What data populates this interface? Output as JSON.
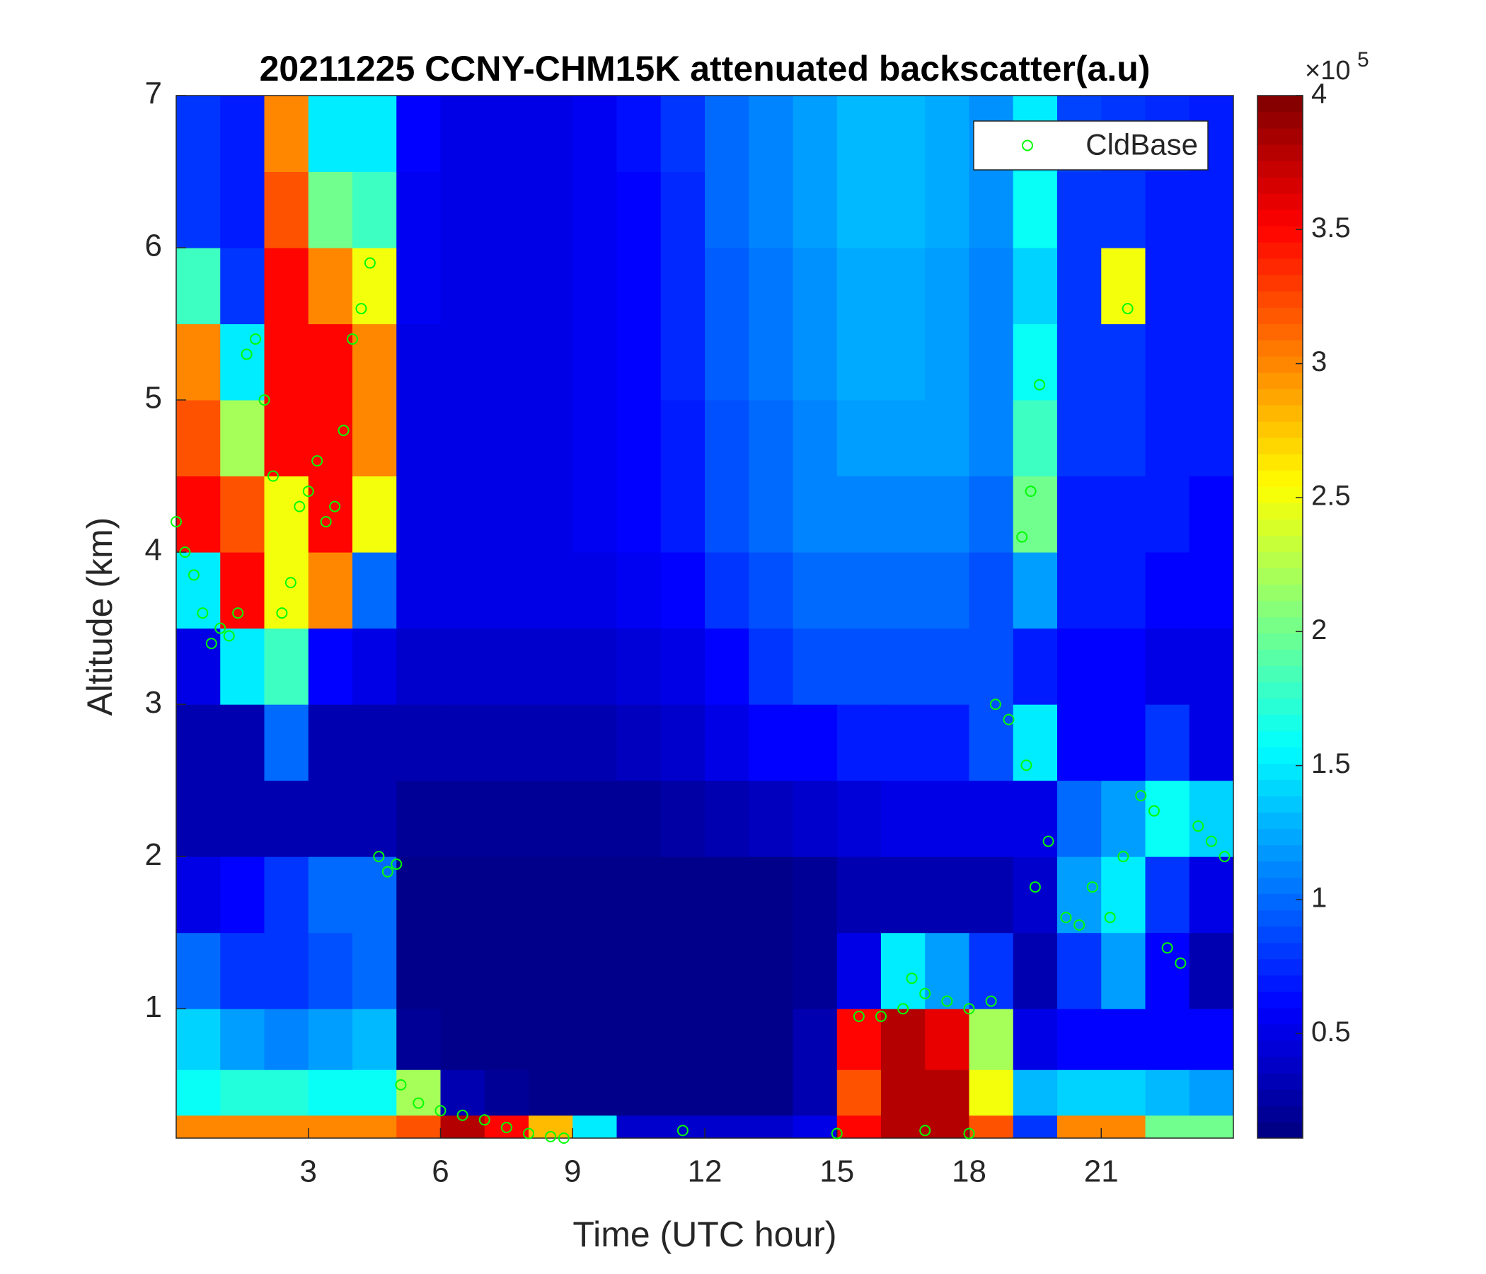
{
  "chart_data": {
    "type": "heatmap",
    "title": "20211225 CCNY-CHM15K attenuated backscatter(a.u)",
    "xlabel": "Time (UTC hour)",
    "ylabel": "Altitude (km)",
    "xlim": [
      0,
      24
    ],
    "ylim": [
      0.15,
      7
    ],
    "xticks": [
      3,
      6,
      9,
      12,
      15,
      18,
      21
    ],
    "yticks": [
      1,
      2,
      3,
      4,
      5,
      6,
      7
    ],
    "colormap": "jet",
    "clim": [
      0.11,
      4
    ],
    "cticks": [
      0.5,
      1,
      1.5,
      2,
      2.5,
      3,
      3.5,
      4
    ],
    "colorbar_multiplier": "×10",
    "colorbar_exponent": "5",
    "x_edges": [
      0,
      1,
      2,
      3,
      4,
      5,
      6,
      7,
      8,
      9,
      10,
      11,
      12,
      13,
      14,
      15,
      16,
      17,
      18,
      19,
      20,
      21,
      22,
      23,
      24
    ],
    "y_edges": [
      0.15,
      0.3,
      0.6,
      1,
      1.5,
      2,
      2.5,
      3,
      3.5,
      4,
      4.5,
      5,
      5.5,
      6,
      6.5,
      7
    ],
    "z": [
      [
        3,
        3,
        3,
        3,
        3,
        3.2,
        3.8,
        3.5,
        2.8,
        1.5,
        0.4,
        0.4,
        0.4,
        0.4,
        0.5,
        3.5,
        3.8,
        3.8,
        3.2,
        0.8,
        3,
        3,
        2,
        2
      ],
      [
        1.6,
        1.7,
        1.7,
        1.6,
        1.6,
        2.2,
        0.3,
        0.2,
        0.15,
        0.15,
        0.15,
        0.15,
        0.15,
        0.15,
        0.3,
        3.2,
        3.8,
        3.8,
        2.5,
        1.3,
        1.4,
        1.4,
        1.3,
        1.2
      ],
      [
        1.4,
        1.2,
        1.1,
        1.2,
        1.3,
        0.2,
        0.15,
        0.15,
        0.15,
        0.15,
        0.15,
        0.15,
        0.15,
        0.15,
        0.3,
        3.5,
        3.8,
        3.6,
        2.2,
        0.5,
        0.6,
        0.6,
        0.6,
        0.6
      ],
      [
        1,
        0.8,
        0.8,
        0.9,
        1,
        0.15,
        0.15,
        0.15,
        0.15,
        0.15,
        0.15,
        0.15,
        0.15,
        0.15,
        0.2,
        0.5,
        1.5,
        1.2,
        0.8,
        0.3,
        0.8,
        1.2,
        0.6,
        0.3
      ],
      [
        0.5,
        0.6,
        0.8,
        1,
        1,
        0.15,
        0.15,
        0.15,
        0.15,
        0.15,
        0.15,
        0.15,
        0.15,
        0.15,
        0.2,
        0.3,
        0.3,
        0.3,
        0.3,
        0.4,
        1.2,
        1.5,
        0.8,
        0.5
      ],
      [
        0.3,
        0.3,
        0.3,
        0.3,
        0.3,
        0.2,
        0.2,
        0.2,
        0.2,
        0.2,
        0.2,
        0.25,
        0.3,
        0.35,
        0.4,
        0.45,
        0.5,
        0.5,
        0.5,
        0.5,
        1,
        1.2,
        1.6,
        1.4
      ],
      [
        0.3,
        0.3,
        1,
        0.3,
        0.3,
        0.3,
        0.3,
        0.3,
        0.3,
        0.3,
        0.35,
        0.4,
        0.5,
        0.6,
        0.6,
        0.7,
        0.7,
        0.7,
        0.9,
        1.5,
        0.6,
        0.6,
        0.8,
        0.5
      ],
      [
        0.5,
        1.5,
        1.8,
        0.6,
        0.5,
        0.4,
        0.4,
        0.4,
        0.4,
        0.4,
        0.45,
        0.5,
        0.6,
        0.8,
        0.9,
        0.9,
        0.9,
        0.9,
        0.9,
        0.7,
        0.6,
        0.6,
        0.5,
        0.5
      ],
      [
        1.5,
        3.5,
        2.5,
        3,
        1,
        0.5,
        0.5,
        0.5,
        0.5,
        0.5,
        0.55,
        0.6,
        0.8,
        0.9,
        1,
        1,
        1,
        1,
        0.9,
        1.2,
        0.7,
        0.7,
        0.6,
        0.6
      ],
      [
        3.5,
        3.2,
        2.5,
        3.5,
        2.5,
        0.5,
        0.5,
        0.5,
        0.5,
        0.55,
        0.6,
        0.7,
        0.9,
        1,
        1.1,
        1.1,
        1.1,
        1.1,
        1,
        2,
        0.7,
        0.7,
        0.7,
        0.6
      ],
      [
        3.2,
        2.2,
        3.5,
        3.5,
        3,
        0.5,
        0.5,
        0.5,
        0.5,
        0.55,
        0.6,
        0.7,
        0.9,
        1,
        1.1,
        1.2,
        1.2,
        1.2,
        1.1,
        1.8,
        0.8,
        0.8,
        0.7,
        0.7
      ],
      [
        3,
        1.5,
        3.5,
        3.5,
        3,
        0.5,
        0.5,
        0.5,
        0.5,
        0.55,
        0.6,
        0.75,
        0.95,
        1.05,
        1.15,
        1.25,
        1.25,
        1.2,
        1.1,
        1.6,
        0.8,
        0.8,
        0.7,
        0.7
      ],
      [
        1.8,
        0.8,
        3.5,
        3,
        2.5,
        0.55,
        0.5,
        0.5,
        0.5,
        0.55,
        0.6,
        0.75,
        0.95,
        1.05,
        1.15,
        1.25,
        1.25,
        1.2,
        1.1,
        1.4,
        0.8,
        2.5,
        0.7,
        0.7
      ],
      [
        0.8,
        0.7,
        3.2,
        2,
        1.8,
        0.55,
        0.5,
        0.5,
        0.5,
        0.55,
        0.6,
        0.75,
        1,
        1.1,
        1.2,
        1.3,
        1.3,
        1.25,
        1.15,
        1.6,
        0.8,
        0.8,
        0.7,
        0.7
      ],
      [
        0.8,
        0.7,
        3,
        1.5,
        1.5,
        0.6,
        0.5,
        0.5,
        0.5,
        0.55,
        0.65,
        0.8,
        1,
        1.1,
        1.2,
        1.3,
        1.3,
        1.25,
        1.15,
        1.5,
        0.85,
        0.8,
        0.75,
        0.7
      ]
    ],
    "legend": "northeast",
    "series": [
      {
        "name": "CldBase",
        "type": "scatter",
        "color": "#00ff00",
        "x": [
          0,
          0.2,
          0.4,
          0.6,
          0.8,
          1,
          1.2,
          1.4,
          1.6,
          1.8,
          2,
          2.2,
          2.4,
          2.6,
          2.8,
          3,
          3.2,
          3.4,
          3.6,
          3.8,
          4,
          4.2,
          4.4,
          4.6,
          4.8,
          5,
          5.1,
          5.5,
          6,
          6.5,
          7,
          7.5,
          8,
          8.5,
          8.8,
          11.5,
          15,
          15.5,
          16,
          16.5,
          16.7,
          17,
          17.5,
          18,
          18.5,
          17,
          18,
          18.6,
          18.9,
          19.2,
          19.4,
          19.6,
          19.3,
          19.5,
          19.8,
          20.2,
          20.5,
          20.8,
          21.2,
          21.5,
          21.6,
          21.9,
          22.2,
          22.5,
          22.8,
          23.2,
          23.5,
          23.8
        ],
        "y": [
          4.2,
          4,
          3.85,
          3.6,
          3.4,
          3.5,
          3.45,
          3.6,
          5.3,
          5.4,
          5,
          4.5,
          3.6,
          3.8,
          4.3,
          4.4,
          4.6,
          4.2,
          4.3,
          4.8,
          5.4,
          5.6,
          5.9,
          2,
          1.9,
          1.95,
          0.5,
          0.38,
          0.33,
          0.3,
          0.27,
          0.22,
          0.18,
          0.16,
          0.15,
          0.2,
          0.18,
          0.95,
          0.95,
          1,
          1.2,
          1.1,
          1.05,
          1,
          1.05,
          0.2,
          0.18,
          3,
          2.9,
          4.1,
          4.4,
          5.1,
          2.6,
          1.8,
          2.1,
          1.6,
          1.55,
          1.8,
          1.6,
          2,
          5.6,
          2.4,
          2.3,
          1.4,
          1.3,
          2.2,
          2.1,
          2
        ]
      }
    ]
  }
}
